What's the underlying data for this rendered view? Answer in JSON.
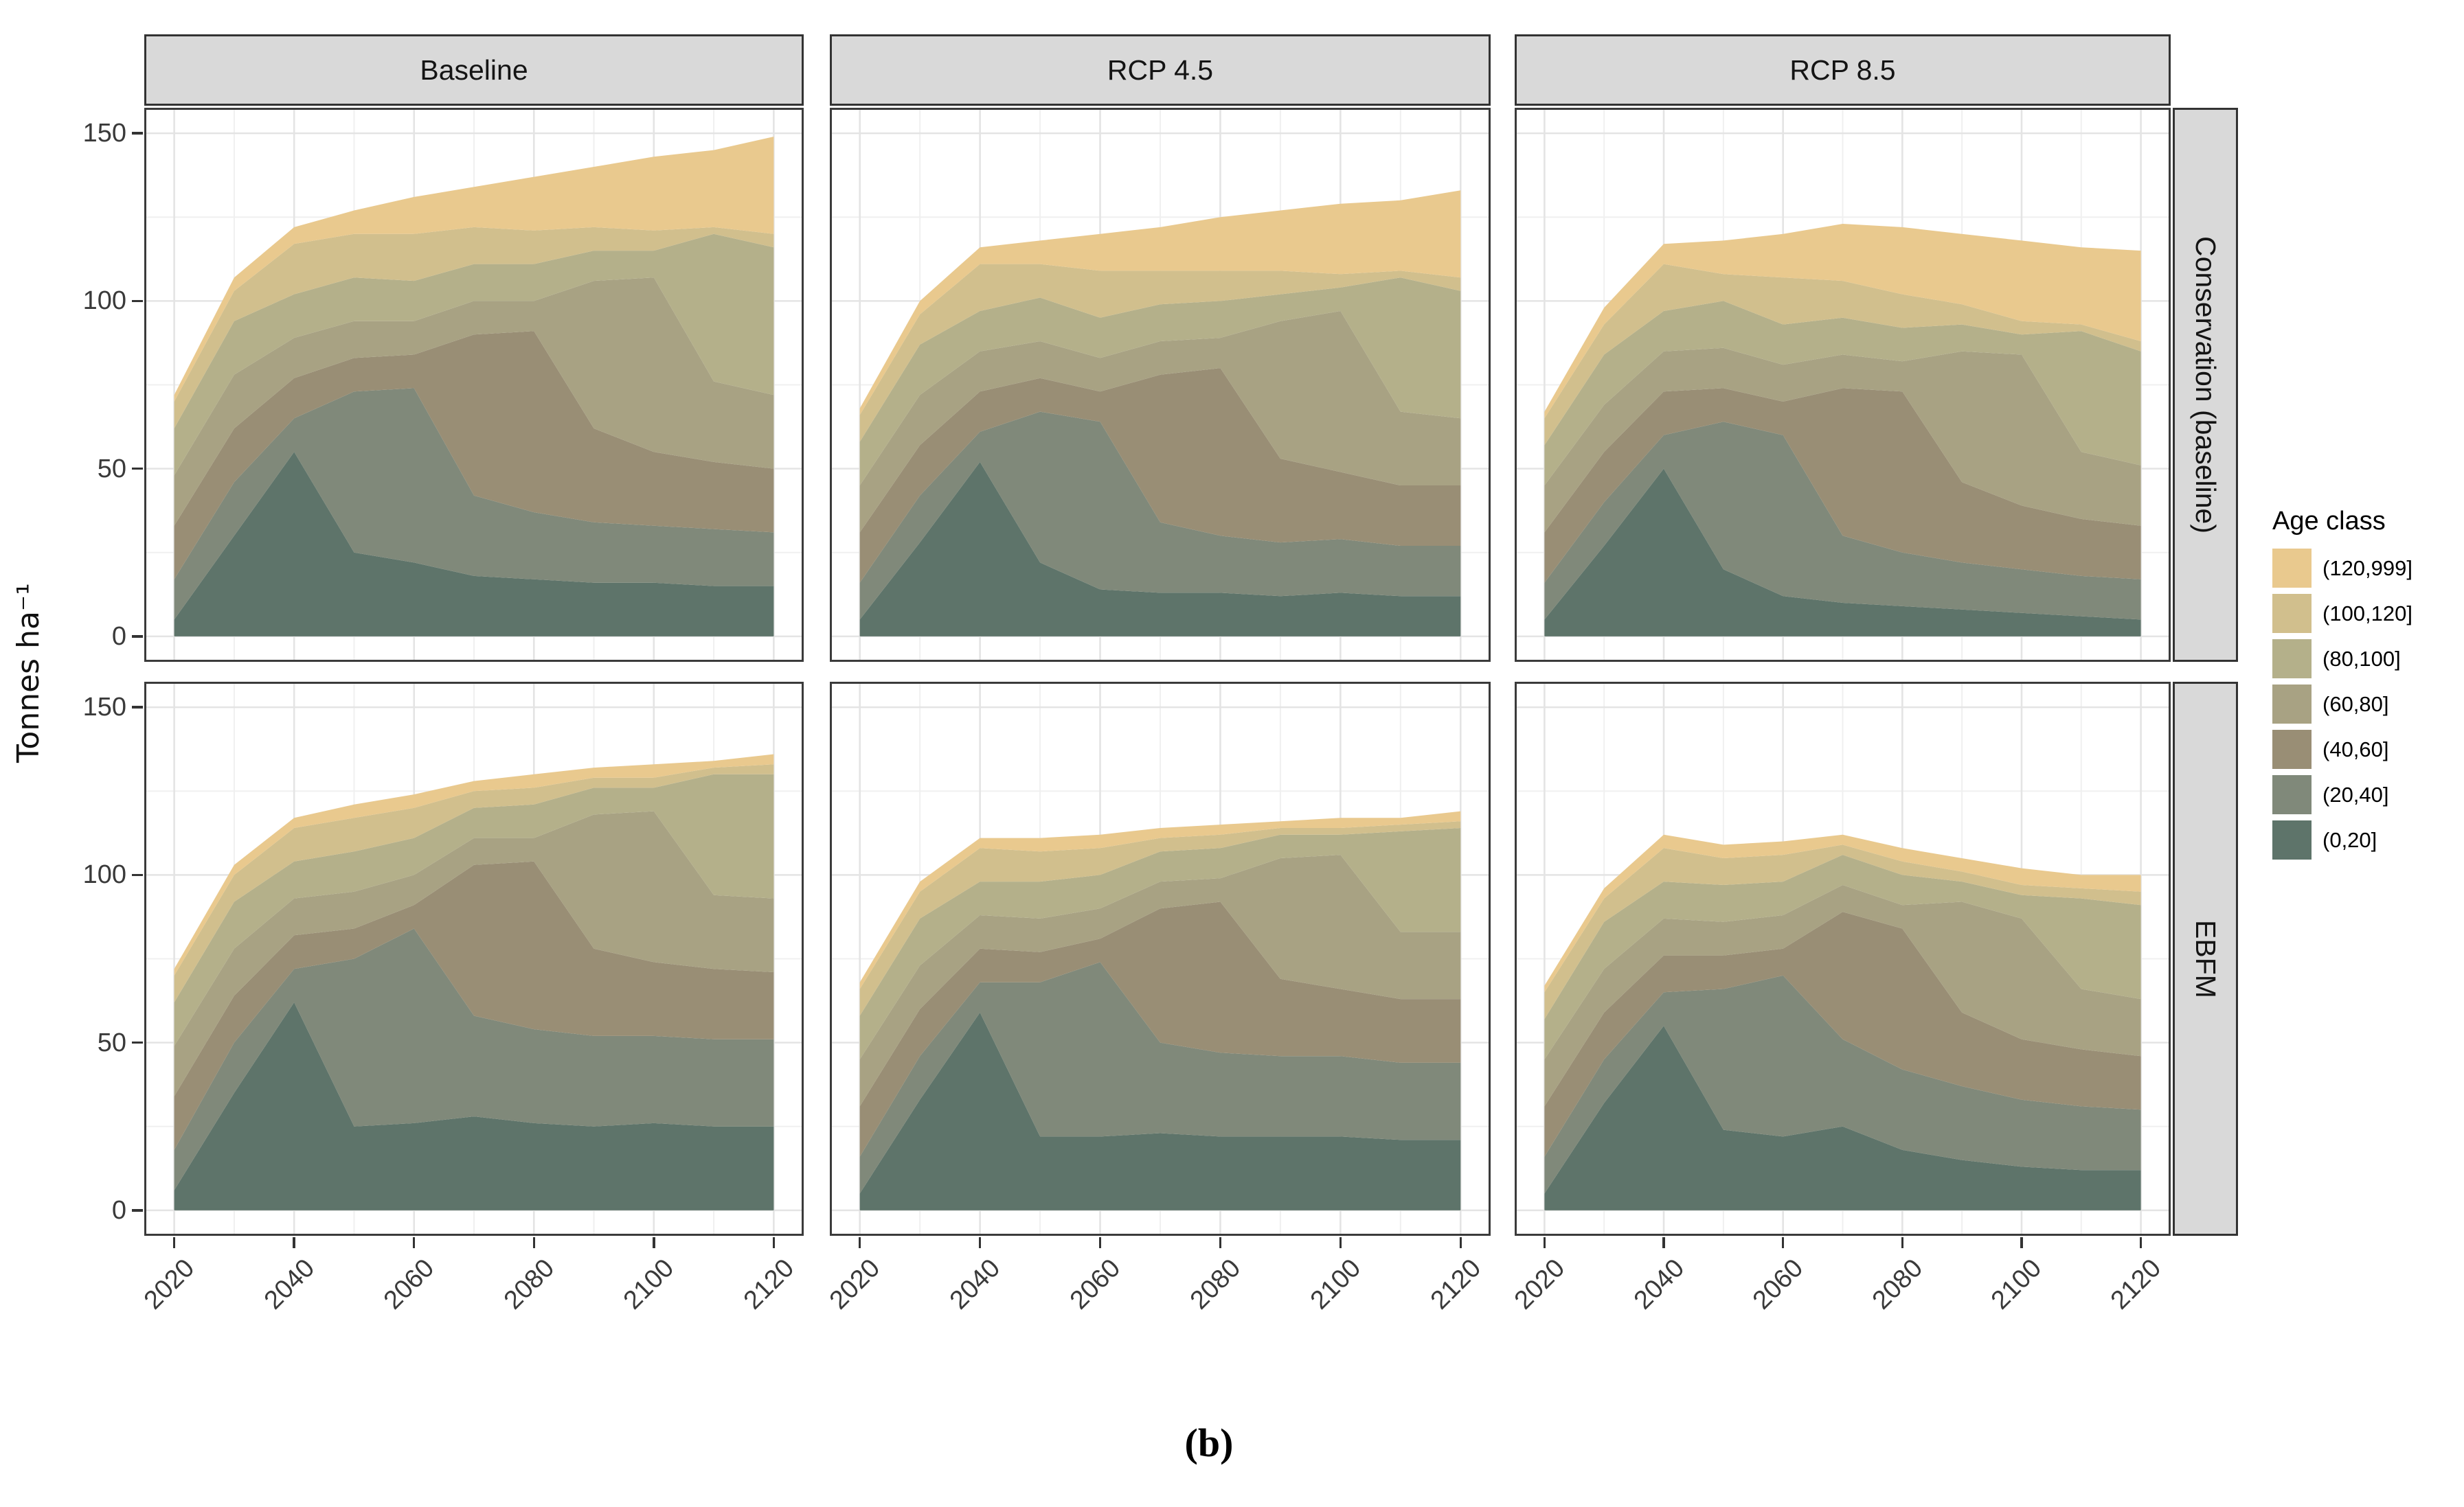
{
  "figure": {
    "caption_label": "(b)"
  },
  "axes": {
    "y_title": "Tonnes ha⁻¹",
    "y_ticks": [
      0,
      50,
      100,
      150
    ],
    "y_minor_ticks": [
      25,
      75,
      125
    ],
    "x_ticks": [
      2020,
      2040,
      2060,
      2080,
      2100,
      2120
    ],
    "x_minor_ticks": [
      2030,
      2050,
      2070,
      2090,
      2110
    ]
  },
  "facets": {
    "columns": [
      "Baseline",
      "RCP 4.5",
      "RCP 8.5"
    ],
    "rows": [
      "Conservation (baseline)",
      "EBFM"
    ]
  },
  "legend": {
    "title": "Age class",
    "entries": [
      {
        "label": "(120,999]",
        "color": "#E9C98E"
      },
      {
        "label": "(100,120]",
        "color": "#D1BF8D"
      },
      {
        "label": "(80,100]",
        "color": "#B4B08A"
      },
      {
        "label": "(60,80]",
        "color": "#A8A283"
      },
      {
        "label": "(40,60]",
        "color": "#998E75"
      },
      {
        "label": "(20,40]",
        "color": "#80897A"
      },
      {
        "label": "(0,20]",
        "color": "#5E746A"
      }
    ]
  },
  "chart_data": {
    "type": "area",
    "stacked": true,
    "title": "",
    "xlabel": "",
    "ylabel": "Tonnes ha⁻¹",
    "x_range": [
      2020,
      2120
    ],
    "ylim": [
      0,
      150
    ],
    "grid": true,
    "legend_position": "right",
    "x": [
      2020,
      2030,
      2040,
      2050,
      2060,
      2070,
      2080,
      2090,
      2100,
      2110,
      2120
    ],
    "stack_order": "bottom to top",
    "panels": [
      {
        "facet_row": "Conservation (baseline)",
        "facet_col": "Baseline",
        "series": [
          {
            "name": "(0,20]",
            "values": [
              5,
              30,
              55,
              25,
              22,
              18,
              17,
              16,
              16,
              15,
              15
            ]
          },
          {
            "name": "(20,40]",
            "values": [
              12,
              16,
              10,
              48,
              52,
              24,
              20,
              18,
              17,
              17,
              16
            ]
          },
          {
            "name": "(40,60]",
            "values": [
              16,
              16,
              12,
              10,
              10,
              48,
              54,
              28,
              22,
              20,
              19
            ]
          },
          {
            "name": "(60,80]",
            "values": [
              15,
              16,
              12,
              11,
              10,
              10,
              9,
              44,
              52,
              24,
              22
            ]
          },
          {
            "name": "(80,100]",
            "values": [
              14,
              16,
              13,
              13,
              12,
              11,
              11,
              9,
              8,
              44,
              44
            ]
          },
          {
            "name": "(100,120]",
            "values": [
              8,
              9,
              15,
              13,
              14,
              11,
              10,
              7,
              6,
              2,
              4
            ]
          },
          {
            "name": "(120,999]",
            "values": [
              2,
              4,
              5,
              7,
              11,
              12,
              16,
              18,
              22,
              23,
              29
            ]
          }
        ]
      },
      {
        "facet_row": "Conservation (baseline)",
        "facet_col": "RCP 4.5",
        "series": [
          {
            "name": "(0,20]",
            "values": [
              5,
              28,
              52,
              22,
              14,
              13,
              13,
              12,
              13,
              12,
              12
            ]
          },
          {
            "name": "(20,40]",
            "values": [
              11,
              14,
              9,
              45,
              50,
              21,
              17,
              16,
              16,
              15,
              15
            ]
          },
          {
            "name": "(40,60]",
            "values": [
              15,
              15,
              12,
              10,
              9,
              44,
              50,
              25,
              20,
              18,
              18
            ]
          },
          {
            "name": "(60,80]",
            "values": [
              14,
              15,
              12,
              11,
              10,
              10,
              9,
              41,
              48,
              22,
              20
            ]
          },
          {
            "name": "(80,100]",
            "values": [
              13,
              15,
              12,
              13,
              12,
              11,
              11,
              8,
              7,
              40,
              38
            ]
          },
          {
            "name": "(100,120]",
            "values": [
              8,
              9,
              14,
              10,
              14,
              10,
              9,
              7,
              4,
              2,
              4
            ]
          },
          {
            "name": "(120,999]",
            "values": [
              2,
              4,
              5,
              7,
              11,
              13,
              16,
              18,
              21,
              21,
              26
            ]
          }
        ]
      },
      {
        "facet_row": "Conservation (baseline)",
        "facet_col": "RCP 8.5",
        "series": [
          {
            "name": "(0,20]",
            "values": [
              5,
              27,
              50,
              20,
              12,
              10,
              9,
              8,
              7,
              6,
              5
            ]
          },
          {
            "name": "(20,40]",
            "values": [
              11,
              13,
              10,
              44,
              48,
              20,
              16,
              14,
              13,
              12,
              12
            ]
          },
          {
            "name": "(40,60]",
            "values": [
              15,
              15,
              13,
              10,
              10,
              44,
              48,
              24,
              19,
              17,
              16
            ]
          },
          {
            "name": "(60,80]",
            "values": [
              14,
              14,
              12,
              12,
              11,
              10,
              9,
              39,
              45,
              20,
              18
            ]
          },
          {
            "name": "(80,100]",
            "values": [
              12,
              15,
              12,
              14,
              12,
              11,
              10,
              8,
              6,
              36,
              34
            ]
          },
          {
            "name": "(100,120]",
            "values": [
              8,
              9,
              14,
              8,
              14,
              11,
              10,
              6,
              4,
              2,
              3
            ]
          },
          {
            "name": "(120,999]",
            "values": [
              2,
              5,
              6,
              10,
              13,
              17,
              20,
              21,
              24,
              23,
              27
            ]
          }
        ]
      },
      {
        "facet_row": "EBFM",
        "facet_col": "Baseline",
        "series": [
          {
            "name": "(0,20]",
            "values": [
              6,
              35,
              62,
              25,
              26,
              28,
              26,
              25,
              26,
              25,
              25
            ]
          },
          {
            "name": "(20,40]",
            "values": [
              12,
              15,
              10,
              50,
              58,
              30,
              28,
              27,
              26,
              26,
              26
            ]
          },
          {
            "name": "(40,60]",
            "values": [
              16,
              14,
              10,
              9,
              7,
              45,
              50,
              26,
              22,
              21,
              20
            ]
          },
          {
            "name": "(60,80]",
            "values": [
              15,
              14,
              11,
              11,
              9,
              8,
              7,
              40,
              45,
              22,
              22
            ]
          },
          {
            "name": "(80,100]",
            "values": [
              13,
              14,
              11,
              12,
              11,
              9,
              10,
              8,
              7,
              36,
              37
            ]
          },
          {
            "name": "(100,120]",
            "values": [
              8,
              8,
              10,
              10,
              9,
              5,
              5,
              3,
              3,
              2,
              3
            ]
          },
          {
            "name": "(120,999]",
            "values": [
              2,
              3,
              3,
              4,
              4,
              3,
              4,
              3,
              4,
              2,
              3
            ]
          }
        ]
      },
      {
        "facet_row": "EBFM",
        "facet_col": "RCP 4.5",
        "series": [
          {
            "name": "(0,20]",
            "values": [
              5,
              33,
              59,
              22,
              22,
              23,
              22,
              22,
              22,
              21,
              21
            ]
          },
          {
            "name": "(20,40]",
            "values": [
              11,
              13,
              9,
              46,
              52,
              27,
              25,
              24,
              24,
              23,
              23
            ]
          },
          {
            "name": "(40,60]",
            "values": [
              15,
              14,
              10,
              9,
              7,
              40,
              45,
              23,
              20,
              19,
              19
            ]
          },
          {
            "name": "(60,80]",
            "values": [
              14,
              13,
              10,
              10,
              9,
              8,
              7,
              36,
              40,
              20,
              20
            ]
          },
          {
            "name": "(80,100]",
            "values": [
              13,
              14,
              10,
              11,
              10,
              9,
              9,
              7,
              6,
              30,
              31
            ]
          },
          {
            "name": "(100,120]",
            "values": [
              8,
              8,
              10,
              9,
              8,
              4,
              4,
              2,
              2,
              2,
              2
            ]
          },
          {
            "name": "(120,999]",
            "values": [
              2,
              3,
              3,
              4,
              4,
              3,
              3,
              2,
              3,
              2,
              3
            ]
          }
        ]
      },
      {
        "facet_row": "EBFM",
        "facet_col": "RCP 8.5",
        "series": [
          {
            "name": "(0,20]",
            "values": [
              5,
              32,
              55,
              24,
              22,
              25,
              18,
              15,
              13,
              12,
              12
            ]
          },
          {
            "name": "(20,40]",
            "values": [
              11,
              13,
              10,
              42,
              48,
              26,
              24,
              22,
              20,
              19,
              18
            ]
          },
          {
            "name": "(40,60]",
            "values": [
              15,
              14,
              11,
              10,
              8,
              38,
              42,
              22,
              18,
              17,
              16
            ]
          },
          {
            "name": "(60,80]",
            "values": [
              14,
              13,
              11,
              10,
              10,
              8,
              7,
              33,
              36,
              18,
              17
            ]
          },
          {
            "name": "(80,100]",
            "values": [
              12,
              14,
              11,
              11,
              10,
              9,
              9,
              6,
              7,
              27,
              28
            ]
          },
          {
            "name": "(100,120]",
            "values": [
              8,
              7,
              10,
              8,
              8,
              3,
              4,
              3,
              3,
              3,
              4
            ]
          },
          {
            "name": "(120,999]",
            "values": [
              2,
              3,
              4,
              4,
              4,
              3,
              4,
              4,
              5,
              4,
              5
            ]
          }
        ]
      }
    ]
  }
}
